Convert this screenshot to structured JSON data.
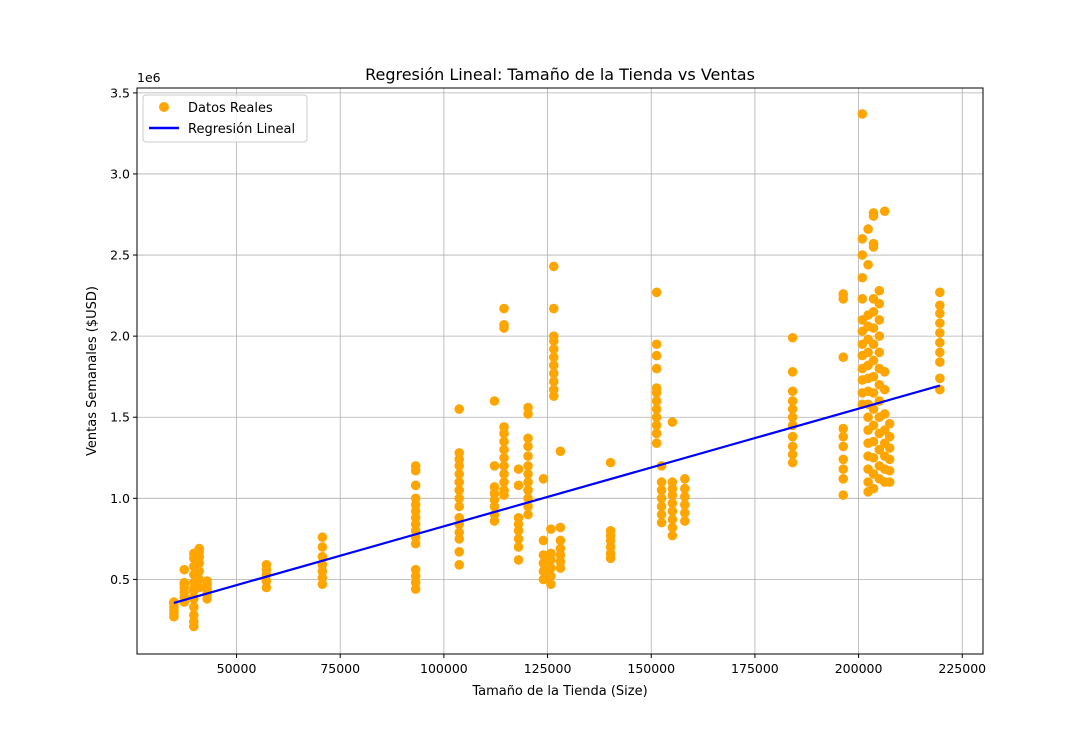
{
  "chart_data": {
    "type": "scatter",
    "title": "Regresión Lineal: Tamaño de la Tienda vs Ventas",
    "xlabel": "Tamaño de la Tienda (Size)",
    "ylabel": "Ventas Semanales ($USD)",
    "y_offset_label": "1e6",
    "xlim": [
      26000,
      230000
    ],
    "ylim": [
      0.04,
      3.53
    ],
    "x_ticks": [
      50000,
      75000,
      100000,
      125000,
      150000,
      175000,
      200000,
      225000
    ],
    "y_ticks": [
      0.5,
      1.0,
      1.5,
      2.0,
      2.5,
      3.0,
      3.5
    ],
    "x_tick_labels": [
      "50000",
      "75000",
      "100000",
      "125000",
      "150000",
      "175000",
      "200000",
      "225000"
    ],
    "y_tick_labels": [
      "0.5",
      "1.0",
      "1.5",
      "2.0",
      "2.5",
      "3.0",
      "3.5"
    ],
    "grid": true,
    "legend_position": "top-left",
    "legend": [
      "Datos Reales",
      "Regresión Lineal"
    ],
    "colors": {
      "points": "#FFA500",
      "line": "#0000FF"
    },
    "series": [
      {
        "name": "Datos Reales",
        "kind": "scatter",
        "groups": [
          {
            "x": 34900,
            "y": [
              0.27,
              0.29,
              0.31,
              0.33,
              0.35,
              0.36
            ]
          },
          {
            "x": 37400,
            "y": [
              0.36,
              0.39,
              0.42,
              0.45,
              0.48,
              0.56,
              0.47
            ]
          },
          {
            "x": 39700,
            "y": [
              0.21,
              0.24,
              0.28,
              0.33,
              0.38,
              0.43,
              0.48,
              0.53,
              0.58,
              0.63,
              0.66,
              0.39,
              0.44
            ]
          },
          {
            "x": 41000,
            "y": [
              0.45,
              0.5,
              0.55,
              0.6,
              0.64,
              0.67,
              0.69
            ]
          },
          {
            "x": 42900,
            "y": [
              0.38,
              0.41,
              0.44,
              0.47,
              0.49
            ]
          },
          {
            "x": 57200,
            "y": [
              0.45,
              0.49,
              0.53,
              0.56,
              0.59
            ]
          },
          {
            "x": 70700,
            "y": [
              0.47,
              0.51,
              0.55,
              0.59,
              0.64,
              0.7,
              0.76
            ]
          },
          {
            "x": 93200,
            "y": [
              0.44,
              0.48,
              0.52,
              0.56,
              0.72,
              0.76,
              0.8,
              0.84,
              0.88,
              0.92,
              0.96,
              1.0,
              1.08,
              1.17,
              1.2
            ]
          },
          {
            "x": 103700,
            "y": [
              0.59,
              0.67,
              0.75,
              0.79,
              0.84,
              0.88,
              0.95,
              1.0,
              1.05,
              1.1,
              1.15,
              1.2,
              1.24,
              1.28,
              1.55
            ]
          },
          {
            "x": 112200,
            "y": [
              0.86,
              0.9,
              0.95,
              0.99,
              1.03,
              1.07,
              1.2,
              1.6
            ]
          },
          {
            "x": 114500,
            "y": [
              1.02,
              1.05,
              1.1,
              1.15,
              1.2,
              1.25,
              1.3,
              1.35,
              1.4,
              1.44,
              2.05,
              2.07,
              2.17
            ]
          },
          {
            "x": 118000,
            "y": [
              0.62,
              0.7,
              0.75,
              0.8,
              0.84,
              0.88,
              1.08,
              1.18
            ]
          },
          {
            "x": 120300,
            "y": [
              0.9,
              0.95,
              1.0,
              1.05,
              1.1,
              1.15,
              1.2,
              1.26,
              1.32,
              1.37,
              1.52,
              1.56
            ]
          },
          {
            "x": 124000,
            "y": [
              0.5,
              0.55,
              0.6,
              0.65,
              0.74,
              1.12
            ]
          },
          {
            "x": 125800,
            "y": [
              0.47,
              0.52,
              0.57,
              0.62,
              0.66,
              0.81
            ]
          },
          {
            "x": 126500,
            "y": [
              1.63,
              1.67,
              1.72,
              1.77,
              1.82,
              1.87,
              1.92,
              1.97,
              2.0,
              2.17,
              2.43
            ]
          },
          {
            "x": 128100,
            "y": [
              0.57,
              0.61,
              0.65,
              0.69,
              0.74,
              0.82,
              1.29
            ]
          },
          {
            "x": 140200,
            "y": [
              0.63,
              0.66,
              0.7,
              0.74,
              0.77,
              0.8,
              1.22
            ]
          },
          {
            "x": 151300,
            "y": [
              1.34,
              1.4,
              1.45,
              1.5,
              1.55,
              1.6,
              1.65,
              1.68,
              1.8,
              1.88,
              1.95,
              2.27
            ]
          },
          {
            "x": 152500,
            "y": [
              0.85,
              0.9,
              0.95,
              1.0,
              1.05,
              1.1,
              1.2
            ]
          },
          {
            "x": 155100,
            "y": [
              0.77,
              0.82,
              0.87,
              0.92,
              0.97,
              1.02,
              1.06,
              1.1,
              1.47
            ]
          },
          {
            "x": 158100,
            "y": [
              0.86,
              0.91,
              0.96,
              1.01,
              1.06,
              1.12
            ]
          },
          {
            "x": 184100,
            "y": [
              1.22,
              1.27,
              1.32,
              1.38,
              1.45,
              1.5,
              1.55,
              1.6,
              1.66,
              1.78,
              1.99
            ]
          },
          {
            "x": 196300,
            "y": [
              1.02,
              1.12,
              1.18,
              1.24,
              1.32,
              1.38,
              1.43,
              1.87,
              2.23,
              2.26
            ]
          },
          {
            "x": 200900,
            "y": [
              1.58,
              1.65,
              1.73,
              1.8,
              1.88,
              1.95,
              2.03,
              2.1,
              2.23,
              2.36,
              2.5,
              2.6,
              3.37
            ]
          },
          {
            "x": 202300,
            "y": [
              1.04,
              1.1,
              1.18,
              1.26,
              1.34,
              1.42,
              1.5,
              1.58,
              1.66,
              1.74,
              1.82,
              1.9,
              1.98,
              2.06,
              2.13,
              2.44,
              2.66
            ]
          },
          {
            "x": 203600,
            "y": [
              1.06,
              1.15,
              1.25,
              1.35,
              1.45,
              1.55,
              1.65,
              1.75,
              1.85,
              1.95,
              2.05,
              2.15,
              2.23,
              2.55,
              2.57,
              2.74,
              2.76
            ]
          },
          {
            "x": 205000,
            "y": [
              1.12,
              1.2,
              1.3,
              1.4,
              1.5,
              1.6,
              1.7,
              1.8,
              1.9,
              2.0,
              2.1,
              2.2,
              2.28
            ]
          },
          {
            "x": 206300,
            "y": [
              1.1,
              1.18,
              1.26,
              1.34,
              1.42,
              1.52,
              1.67,
              1.78,
              2.77
            ]
          },
          {
            "x": 207500,
            "y": [
              1.1,
              1.17,
              1.24,
              1.31,
              1.38,
              1.46
            ]
          },
          {
            "x": 219600,
            "y": [
              1.67,
              1.74,
              1.84,
              1.9,
              1.96,
              2.02,
              2.08,
              2.14,
              2.19,
              2.27
            ]
          }
        ]
      },
      {
        "name": "Regresión Lineal",
        "kind": "line",
        "x": [
          34900,
          219600
        ],
        "y": [
          0.355,
          1.695
        ]
      }
    ]
  }
}
